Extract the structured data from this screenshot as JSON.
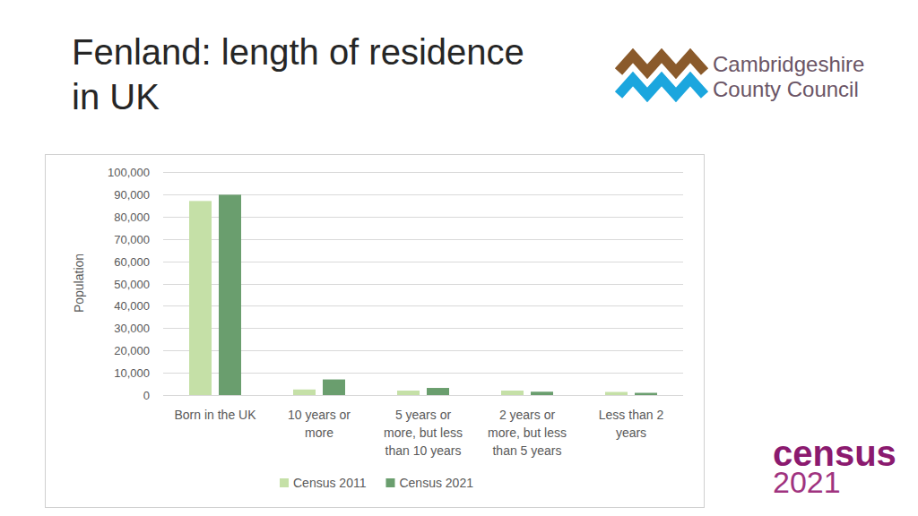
{
  "page": {
    "logo_text": [
      "Cambridgeshire",
      "County Council"
    ],
    "badge_text": [
      "census",
      "2021"
    ]
  },
  "chart_data": {
    "type": "bar",
    "title": "Fenland: length of residence in UK",
    "y_label": "Population",
    "categories": [
      "Born in the UK",
      "10 years or more",
      "5 years or more, but less than 10 years",
      "2 years or more, but less than 5 years",
      "Less than 2 years"
    ],
    "series": [
      {
        "name": "Census 2011",
        "color": "#c5e0a7",
        "values": [
          87000,
          2500,
          2000,
          2000,
          1400
        ]
      },
      {
        "name": "Census 2021",
        "color": "#6a9e6e",
        "values": [
          89800,
          7000,
          3200,
          1500,
          1000
        ]
      }
    ],
    "ylim": [
      0,
      100000
    ],
    "yticks": [
      0,
      {
        "value": 10000,
        "label": "10,000"
      },
      {
        "value": 20000,
        "label": "20,000"
      },
      {
        "value": 30000,
        "label": "30,000"
      },
      {
        "value": 40000,
        "label": "40,000"
      },
      {
        "value": 50000,
        "label": "50,000"
      },
      {
        "value": 60000,
        "label": "60,000"
      },
      {
        "value": 70000,
        "label": "70,000"
      },
      {
        "value": 80000,
        "label": "80,000"
      },
      {
        "value": 90000,
        "label": "90,000"
      },
      {
        "value": 100000,
        "label": "100,000"
      }
    ],
    "grid": true,
    "legend": "bottom"
  }
}
